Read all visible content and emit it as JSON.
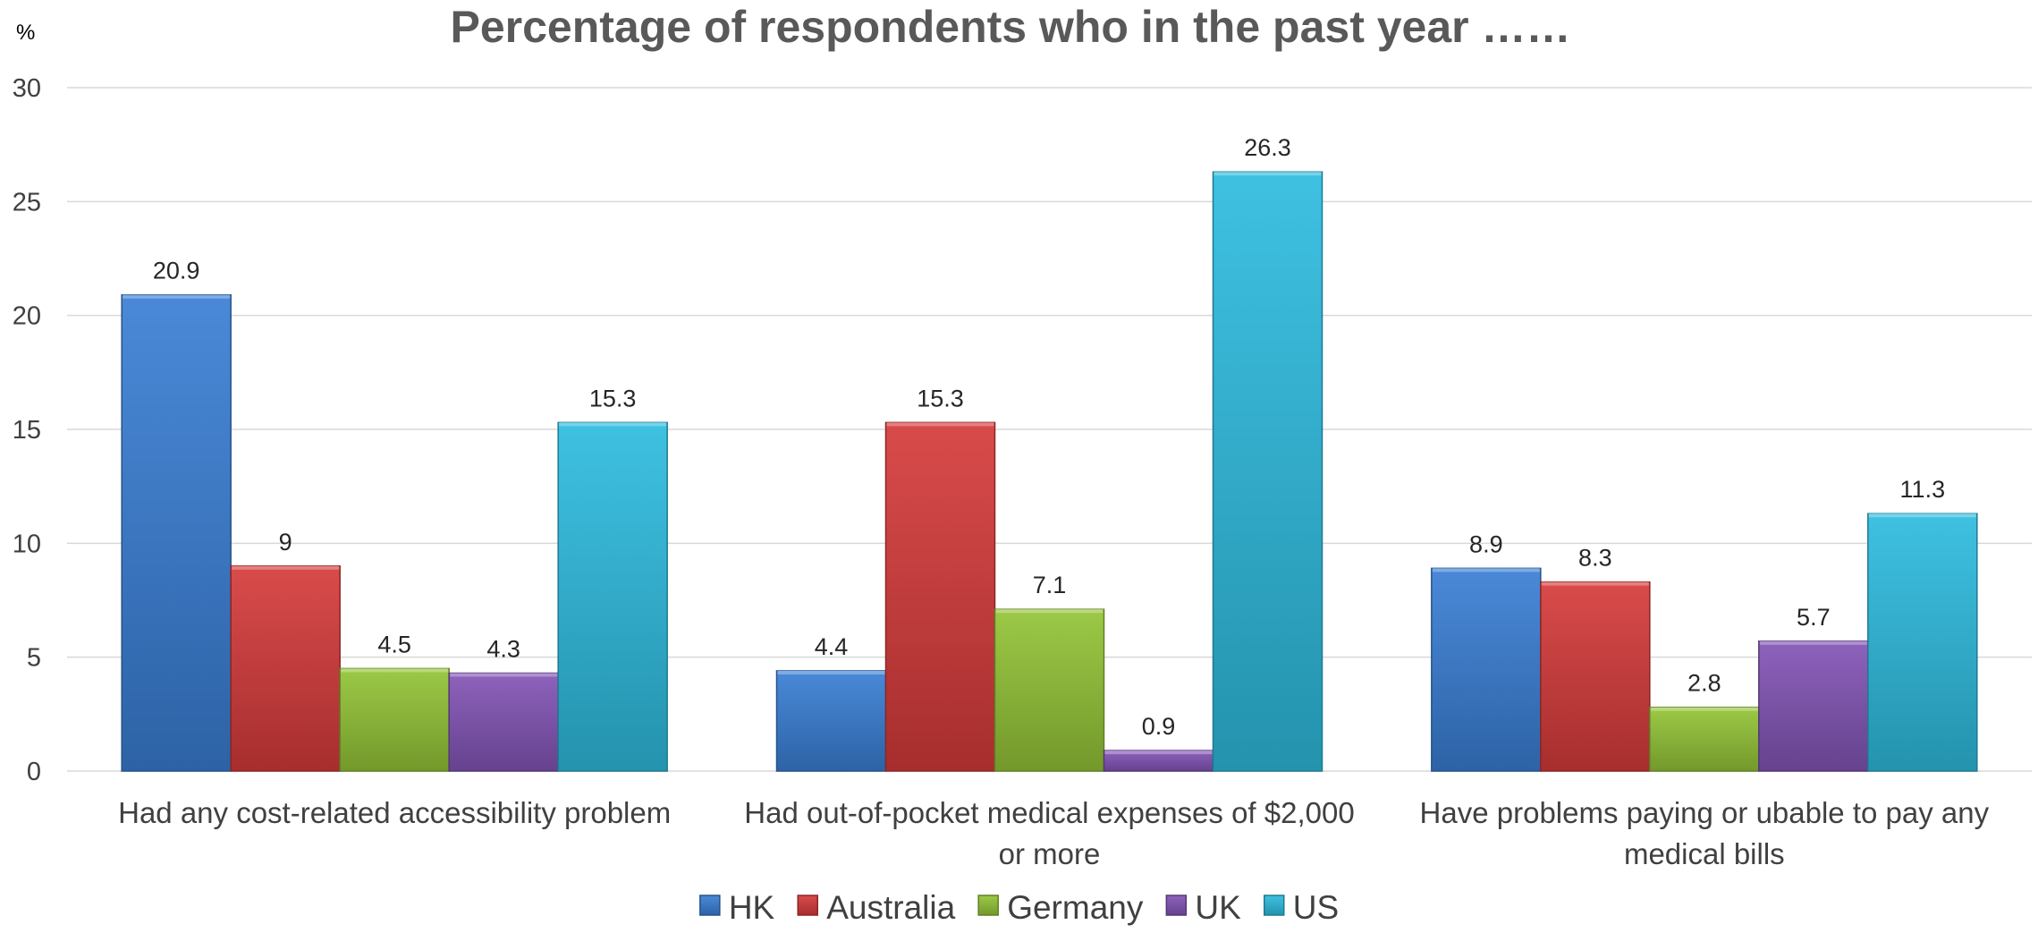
{
  "chart_data": {
    "type": "bar",
    "title": "Percentage of respondents who in the past year ……",
    "ylabel": "%",
    "xlabel": "",
    "ylim": [
      0,
      30
    ],
    "yticks": [
      0,
      5,
      10,
      15,
      20,
      25,
      30
    ],
    "grid": true,
    "legend_position": "bottom",
    "categories": [
      [
        "Had any cost-related accessibility problem"
      ],
      [
        "Had out-of-pocket medical expenses of $2,000",
        "or more"
      ],
      [
        "Have problems paying or ubable to pay any",
        "medical bills"
      ]
    ],
    "series": [
      {
        "name": "HK",
        "color": "#3a7fd5",
        "values": [
          20.9,
          4.4,
          8.9
        ]
      },
      {
        "name": "Australia",
        "color": "#d63b3b",
        "values": [
          9,
          15.3,
          8.3
        ]
      },
      {
        "name": "Germany",
        "color": "#93c437",
        "values": [
          4.5,
          7.1,
          2.8
        ]
      },
      {
        "name": "UK",
        "color": "#8354b6",
        "values": [
          4.3,
          0.9,
          5.7
        ]
      },
      {
        "name": "US",
        "color": "#2ebcdf",
        "values": [
          15.3,
          26.3,
          11.3
        ]
      }
    ]
  }
}
